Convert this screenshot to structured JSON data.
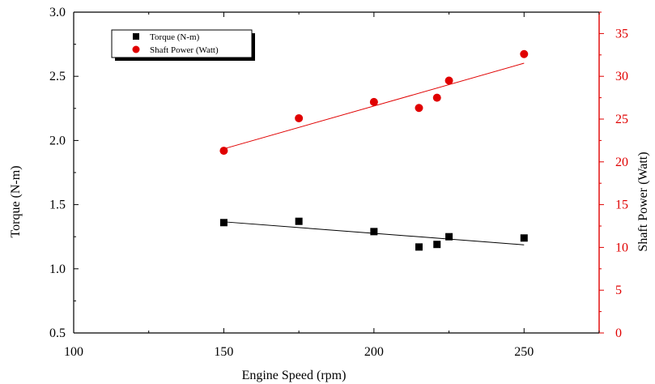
{
  "chart_data": {
    "type": "scatter",
    "xlabel": "Engine Speed (rpm)",
    "ylabel_left": "Torque (N-m)",
    "ylabel_right": "Shaft Power (Watt)",
    "xlim": [
      100,
      275
    ],
    "ylim_left": [
      0.5,
      3.0
    ],
    "ylim_right": [
      0,
      37.5
    ],
    "x_ticks": [
      "100",
      "150",
      "200",
      "250"
    ],
    "y_left_ticks": [
      "0.5",
      "1.0",
      "1.5",
      "2.0",
      "2.5",
      "3.0"
    ],
    "y_right_ticks": [
      "0",
      "5",
      "10",
      "15",
      "20",
      "25",
      "30",
      "35"
    ],
    "legend_position": "top-left",
    "grid": false,
    "series": [
      {
        "name": "Torque (N-m)",
        "axis": "left",
        "color": "#000000",
        "marker": "square",
        "x": [
          150,
          175,
          200,
          215,
          221,
          225,
          250
        ],
        "y": [
          1.36,
          1.37,
          1.29,
          1.17,
          1.19,
          1.25,
          1.24
        ],
        "fit_line": true
      },
      {
        "name": "Shaft Power (Watt)",
        "axis": "right",
        "color": "#e00000",
        "marker": "circle",
        "x": [
          150,
          175,
          200,
          215,
          221,
          225,
          250
        ],
        "y": [
          21.3,
          25.1,
          27.0,
          26.3,
          27.5,
          29.5,
          32.6
        ],
        "fit_line": true
      }
    ]
  }
}
